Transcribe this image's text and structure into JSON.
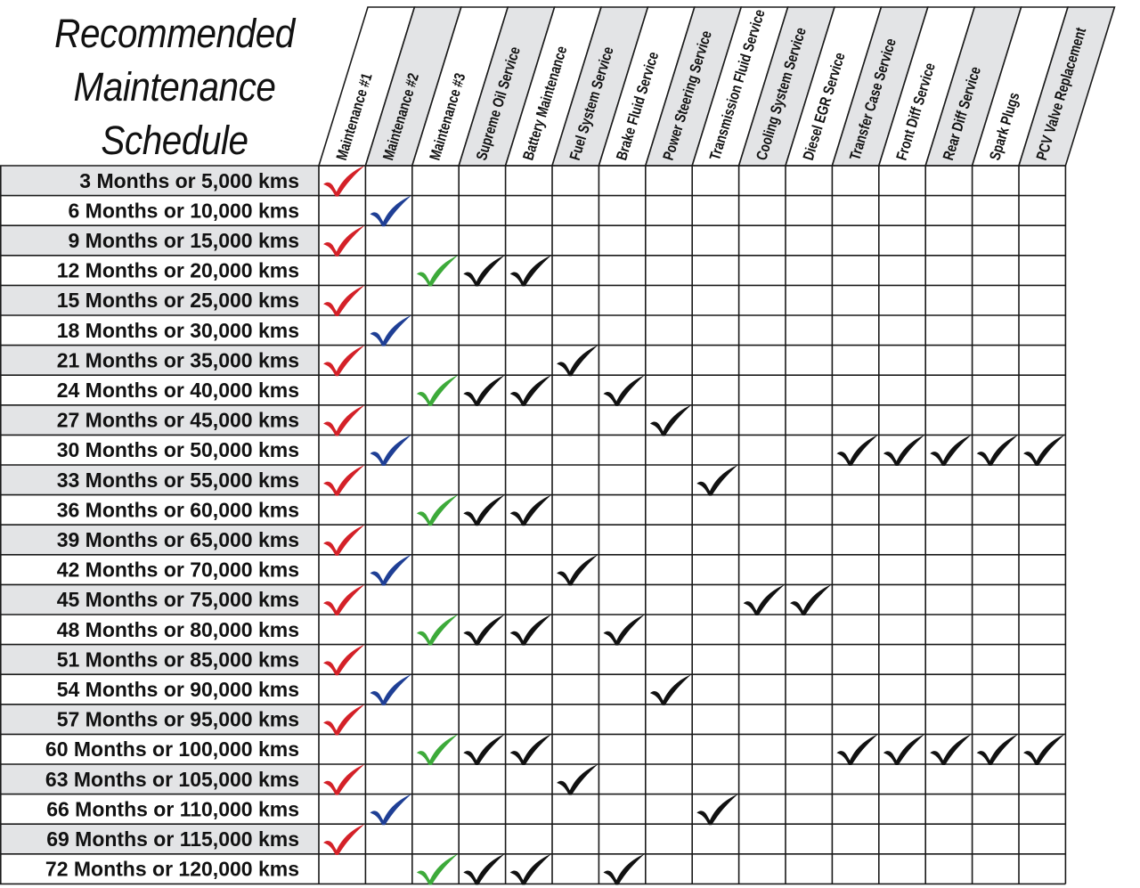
{
  "title_lines": [
    "Recommended",
    "Maintenance",
    "Schedule"
  ],
  "columns": [
    {
      "label": "Maintenance #1",
      "shaded": false
    },
    {
      "label": "Maintenance #2",
      "shaded": true
    },
    {
      "label": "Maintenance #3",
      "shaded": false
    },
    {
      "label": "Supreme Oil Service",
      "shaded": true
    },
    {
      "label": "Battery Maintenance",
      "shaded": false
    },
    {
      "label": "Fuel System Service",
      "shaded": true
    },
    {
      "label": "Brake Fluid Service",
      "shaded": false
    },
    {
      "label": "Power Steering Service",
      "shaded": true
    },
    {
      "label": "Transmission Fluid Service",
      "shaded": false
    },
    {
      "label": "Cooling System Service",
      "shaded": true
    },
    {
      "label": "Diesel EGR Service",
      "shaded": false
    },
    {
      "label": "Transfer Case Service",
      "shaded": true
    },
    {
      "label": "Front Diff Service",
      "shaded": false
    },
    {
      "label": "Rear Diff Service",
      "shaded": true
    },
    {
      "label": "Spark Plugs",
      "shaded": false
    },
    {
      "label": "PCV Valve Replacement",
      "shaded": true
    }
  ],
  "colors": {
    "maintenance_1": "#d42128",
    "maintenance_2": "#1f3f95",
    "maintenance_3": "#3daa3a",
    "service": "#111111",
    "shade": "#e3e4e6",
    "grid": "#1a1a1a"
  },
  "rows": [
    {
      "label": "3 Months or 5,000 kms",
      "shaded": true,
      "checks": [
        0
      ]
    },
    {
      "label": "6 Months or 10,000 kms",
      "shaded": false,
      "checks": [
        1
      ]
    },
    {
      "label": "9 Months or 15,000 kms",
      "shaded": true,
      "checks": [
        0
      ]
    },
    {
      "label": "12 Months or 20,000 kms",
      "shaded": false,
      "checks": [
        2,
        3,
        4
      ]
    },
    {
      "label": "15 Months or 25,000 kms",
      "shaded": true,
      "checks": [
        0
      ]
    },
    {
      "label": "18 Months or 30,000 kms",
      "shaded": false,
      "checks": [
        1
      ]
    },
    {
      "label": "21 Months or 35,000 kms",
      "shaded": true,
      "checks": [
        0,
        5
      ]
    },
    {
      "label": "24 Months or 40,000 kms",
      "shaded": false,
      "checks": [
        2,
        3,
        4,
        6
      ]
    },
    {
      "label": "27 Months or 45,000 kms",
      "shaded": true,
      "checks": [
        0,
        7
      ]
    },
    {
      "label": "30 Months or 50,000 kms",
      "shaded": false,
      "checks": [
        1,
        11,
        12,
        13,
        14,
        15
      ]
    },
    {
      "label": "33 Months or 55,000 kms",
      "shaded": true,
      "checks": [
        0,
        8
      ]
    },
    {
      "label": "36 Months or 60,000 kms",
      "shaded": false,
      "checks": [
        2,
        3,
        4
      ]
    },
    {
      "label": "39 Months or 65,000 kms",
      "shaded": true,
      "checks": [
        0
      ]
    },
    {
      "label": "42 Months or 70,000 kms",
      "shaded": false,
      "checks": [
        1,
        5
      ]
    },
    {
      "label": "45 Months or 75,000 kms",
      "shaded": true,
      "checks": [
        0,
        9,
        10
      ]
    },
    {
      "label": "48 Months or 80,000 kms",
      "shaded": false,
      "checks": [
        2,
        3,
        4,
        6
      ]
    },
    {
      "label": "51 Months or 85,000 kms",
      "shaded": true,
      "checks": [
        0
      ]
    },
    {
      "label": "54 Months or 90,000 kms",
      "shaded": false,
      "checks": [
        1,
        7
      ]
    },
    {
      "label": "57 Months or 95,000 kms",
      "shaded": true,
      "checks": [
        0
      ]
    },
    {
      "label": "60 Months or 100,000 kms",
      "shaded": false,
      "checks": [
        2,
        3,
        4,
        11,
        12,
        13,
        14,
        15
      ]
    },
    {
      "label": "63 Months or 105,000 kms",
      "shaded": true,
      "checks": [
        0,
        5
      ]
    },
    {
      "label": "66 Months or 110,000 kms",
      "shaded": false,
      "checks": [
        1,
        8
      ]
    },
    {
      "label": "69 Months or 115,000 kms",
      "shaded": true,
      "checks": [
        0
      ]
    },
    {
      "label": "72 Months or 120,000 kms",
      "shaded": false,
      "checks": [
        2,
        3,
        4,
        6
      ]
    }
  ]
}
